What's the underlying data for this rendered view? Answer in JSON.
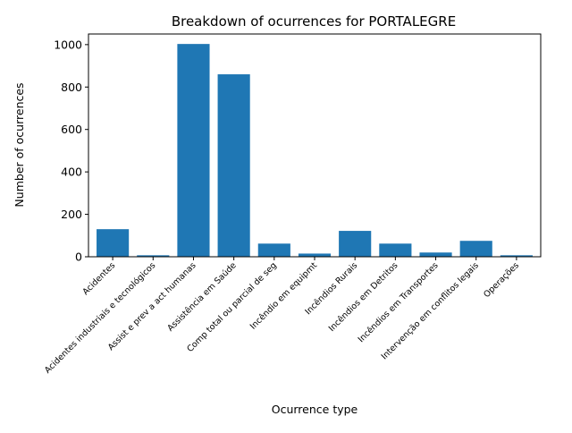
{
  "chart_data": {
    "type": "bar",
    "title": "Breakdown of ocurrences for PORTALEGRE",
    "xlabel": "Ocurrence type",
    "ylabel": "Number of ocurrences",
    "categories": [
      "Acidentes",
      "Acidentes industriais e tecnológicos",
      "Assist e prev a act humanas",
      "Assistência em Saúde",
      "Comp total ou parcial de seg",
      "Incêndio em equipmt",
      "Incêndios Rurais",
      "Incêndios em Detritos",
      "Incêndios em Transportes",
      "Intervenção em conflitos legais",
      "Operações"
    ],
    "values": [
      130,
      7,
      1003,
      860,
      62,
      15,
      122,
      62,
      20,
      75,
      7
    ],
    "ylim": [
      0,
      1050
    ],
    "yticks": [
      0,
      200,
      400,
      600,
      800,
      1000
    ],
    "bar_color": "#1f77b4",
    "grid": false,
    "legend": "none"
  }
}
